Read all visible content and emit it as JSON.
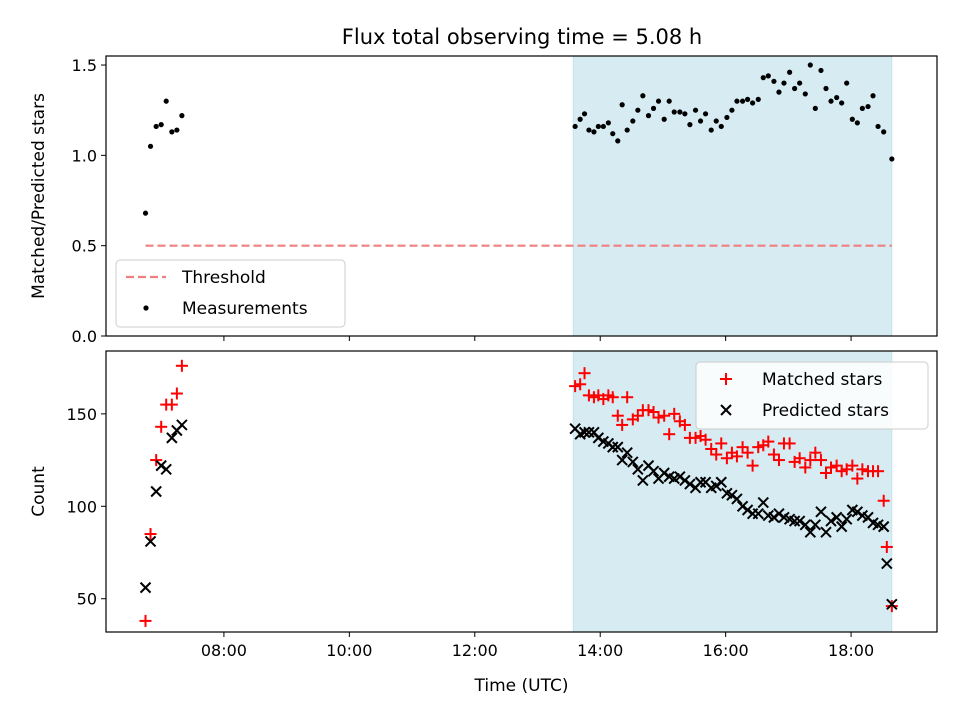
{
  "figure": {
    "title": "Flux total observing time = 5.08 h"
  },
  "chart_data": [
    {
      "type": "scatter",
      "ylabel": "Matched/Predicted stars",
      "xlabel": "",
      "xlim": [
        6.12,
        19.37
      ],
      "ylim": [
        0,
        1.55
      ],
      "yticks": [
        0.0,
        0.5,
        1.0,
        1.5
      ],
      "yticklabels": [
        "0.0",
        "0.5",
        "1.0",
        "1.5"
      ],
      "xticks": [
        8,
        10,
        12,
        14,
        16,
        18
      ],
      "grid": false,
      "legend_position": "lower-left",
      "shaded_interval": [
        13.57,
        18.65
      ],
      "series": [
        {
          "name": "Threshold",
          "kind": "dashed-line",
          "color": "#f08080",
          "x": [
            6.75,
            18.65
          ],
          "y": [
            0.5,
            0.5
          ]
        },
        {
          "name": "Measurements",
          "kind": "dot",
          "color": "#000000",
          "x": [
            6.75,
            6.83,
            6.92,
            7.0,
            7.08,
            7.17,
            7.25,
            7.33,
            13.6,
            13.68,
            13.75,
            13.82,
            13.9,
            13.97,
            14.05,
            14.13,
            14.2,
            14.28,
            14.35,
            14.43,
            14.52,
            14.6,
            14.68,
            14.77,
            14.85,
            14.93,
            15.02,
            15.1,
            15.18,
            15.27,
            15.35,
            15.43,
            15.52,
            15.6,
            15.68,
            15.77,
            15.85,
            15.93,
            16.02,
            16.1,
            16.18,
            16.27,
            16.35,
            16.43,
            16.52,
            16.6,
            16.68,
            16.77,
            16.85,
            16.93,
            17.02,
            17.1,
            17.18,
            17.27,
            17.35,
            17.43,
            17.52,
            17.6,
            17.68,
            17.77,
            17.85,
            17.93,
            18.02,
            18.1,
            18.18,
            18.27,
            18.35,
            18.43,
            18.52,
            18.65
          ],
          "y": [
            0.68,
            1.05,
            1.16,
            1.17,
            1.3,
            1.13,
            1.14,
            1.22,
            1.16,
            1.2,
            1.23,
            1.14,
            1.13,
            1.16,
            1.16,
            1.18,
            1.12,
            1.08,
            1.28,
            1.14,
            1.19,
            1.25,
            1.33,
            1.22,
            1.26,
            1.3,
            1.2,
            1.3,
            1.24,
            1.24,
            1.23,
            1.17,
            1.25,
            1.19,
            1.23,
            1.14,
            1.19,
            1.16,
            1.21,
            1.25,
            1.3,
            1.3,
            1.31,
            1.29,
            1.31,
            1.43,
            1.44,
            1.41,
            1.35,
            1.4,
            1.46,
            1.37,
            1.4,
            1.34,
            1.5,
            1.26,
            1.47,
            1.37,
            1.3,
            1.32,
            1.29,
            1.4,
            1.2,
            1.18,
            1.26,
            1.27,
            1.33,
            1.16,
            1.13,
            0.98
          ]
        }
      ]
    },
    {
      "type": "scatter",
      "ylabel": "Count",
      "xlabel": "Time (UTC)",
      "xlim": [
        6.12,
        19.37
      ],
      "ylim": [
        32,
        184
      ],
      "yticks": [
        50,
        100,
        150
      ],
      "yticklabels": [
        "50",
        "100",
        "150"
      ],
      "xticks": [
        8,
        10,
        12,
        14,
        16,
        18
      ],
      "xticklabels": [
        "08:00",
        "10:00",
        "12:00",
        "14:00",
        "16:00",
        "18:00"
      ],
      "grid": false,
      "legend_position": "top-right",
      "shaded_interval": [
        13.57,
        18.65
      ],
      "series": [
        {
          "name": "Matched stars",
          "kind": "plus",
          "color": "#ff0000",
          "x": [
            6.75,
            6.83,
            6.92,
            7.0,
            7.08,
            7.17,
            7.25,
            7.33,
            13.6,
            13.68,
            13.75,
            13.82,
            13.9,
            13.97,
            14.05,
            14.13,
            14.2,
            14.28,
            14.35,
            14.43,
            14.52,
            14.6,
            14.68,
            14.77,
            14.85,
            14.93,
            15.02,
            15.1,
            15.18,
            15.27,
            15.35,
            15.43,
            15.52,
            15.6,
            15.68,
            15.77,
            15.85,
            15.93,
            16.02,
            16.1,
            16.18,
            16.27,
            16.35,
            16.43,
            16.52,
            16.6,
            16.68,
            16.77,
            16.85,
            16.93,
            17.02,
            17.1,
            17.18,
            17.27,
            17.35,
            17.43,
            17.52,
            17.6,
            17.68,
            17.77,
            17.85,
            17.93,
            18.02,
            18.1,
            18.18,
            18.27,
            18.35,
            18.43,
            18.52,
            18.57,
            18.65
          ],
          "y": [
            38,
            85,
            125,
            143,
            155,
            155,
            161,
            176,
            165,
            166,
            172,
            160,
            159,
            160,
            158,
            160,
            159,
            149,
            144,
            159,
            147,
            149,
            152,
            152,
            151,
            148,
            149,
            139,
            150,
            146,
            144,
            137,
            137,
            138,
            136,
            131,
            128,
            134,
            126,
            129,
            127,
            132,
            129,
            122,
            132,
            133,
            135,
            128,
            125,
            134,
            134,
            124,
            126,
            121,
            125,
            129,
            125,
            118,
            121,
            122,
            119,
            120,
            122,
            115,
            120,
            119,
            119,
            119,
            103,
            78,
            46
          ]
        },
        {
          "name": "Predicted stars",
          "kind": "cross",
          "color": "#000000",
          "x": [
            6.75,
            6.83,
            6.92,
            7.0,
            7.08,
            7.17,
            7.25,
            7.33,
            13.6,
            13.68,
            13.75,
            13.82,
            13.9,
            13.97,
            14.05,
            14.13,
            14.2,
            14.28,
            14.35,
            14.43,
            14.52,
            14.6,
            14.68,
            14.77,
            14.85,
            14.93,
            15.02,
            15.1,
            15.18,
            15.27,
            15.35,
            15.43,
            15.52,
            15.6,
            15.68,
            15.77,
            15.85,
            15.93,
            16.02,
            16.1,
            16.18,
            16.27,
            16.35,
            16.43,
            16.52,
            16.6,
            16.68,
            16.77,
            16.85,
            16.93,
            17.02,
            17.1,
            17.18,
            17.27,
            17.35,
            17.43,
            17.52,
            17.6,
            17.68,
            17.77,
            17.85,
            17.93,
            18.02,
            18.1,
            18.18,
            18.27,
            18.35,
            18.43,
            18.52,
            18.57,
            18.65
          ],
          "y": [
            56,
            81,
            108,
            122,
            120,
            137,
            141,
            144,
            142,
            139,
            140,
            140,
            140,
            137,
            135,
            134,
            132,
            132,
            125,
            129,
            124,
            120,
            114,
            122,
            119,
            115,
            118,
            116,
            115,
            116,
            114,
            112,
            110,
            113,
            113,
            110,
            111,
            113,
            107,
            106,
            104,
            100,
            98,
            96,
            96,
            102,
            95,
            94,
            96,
            94,
            93,
            92,
            92,
            90,
            86,
            90,
            97,
            86,
            92,
            94,
            89,
            93,
            98,
            97,
            95,
            94,
            91,
            90,
            89,
            69,
            47
          ]
        }
      ]
    }
  ]
}
